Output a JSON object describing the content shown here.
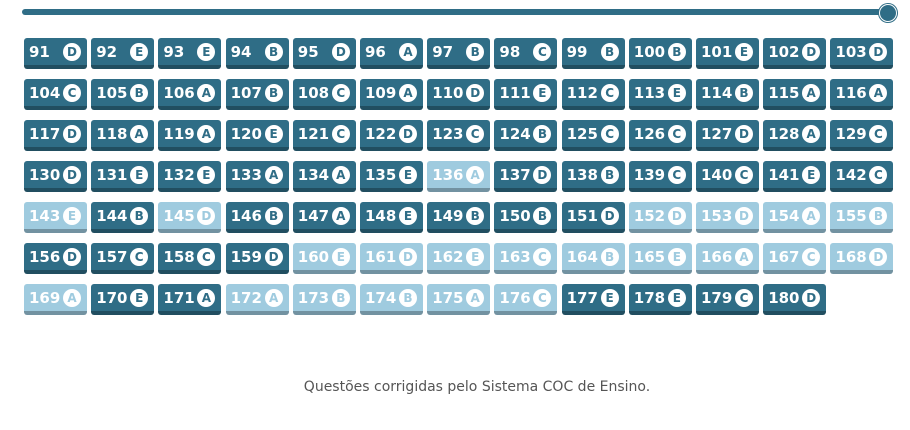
{
  "progress": {
    "value": 1
  },
  "colors": {
    "dark": "#2f6d86",
    "light": "#9fcbdf"
  },
  "questions": [
    {
      "n": "91",
      "a": "D",
      "s": "dark"
    },
    {
      "n": "92",
      "a": "E",
      "s": "dark"
    },
    {
      "n": "93",
      "a": "E",
      "s": "dark"
    },
    {
      "n": "94",
      "a": "B",
      "s": "dark"
    },
    {
      "n": "95",
      "a": "D",
      "s": "dark"
    },
    {
      "n": "96",
      "a": "A",
      "s": "dark"
    },
    {
      "n": "97",
      "a": "B",
      "s": "dark"
    },
    {
      "n": "98",
      "a": "C",
      "s": "dark"
    },
    {
      "n": "99",
      "a": "B",
      "s": "dark"
    },
    {
      "n": "100",
      "a": "B",
      "s": "dark"
    },
    {
      "n": "101",
      "a": "E",
      "s": "dark"
    },
    {
      "n": "102",
      "a": "D",
      "s": "dark"
    },
    {
      "n": "103",
      "a": "D",
      "s": "dark"
    },
    {
      "n": "104",
      "a": "C",
      "s": "dark"
    },
    {
      "n": "105",
      "a": "B",
      "s": "dark"
    },
    {
      "n": "106",
      "a": "A",
      "s": "dark"
    },
    {
      "n": "107",
      "a": "B",
      "s": "dark"
    },
    {
      "n": "108",
      "a": "C",
      "s": "dark"
    },
    {
      "n": "109",
      "a": "A",
      "s": "dark"
    },
    {
      "n": "110",
      "a": "D",
      "s": "dark"
    },
    {
      "n": "111",
      "a": "E",
      "s": "dark"
    },
    {
      "n": "112",
      "a": "C",
      "s": "dark"
    },
    {
      "n": "113",
      "a": "E",
      "s": "dark"
    },
    {
      "n": "114",
      "a": "B",
      "s": "dark"
    },
    {
      "n": "115",
      "a": "A",
      "s": "dark"
    },
    {
      "n": "116",
      "a": "A",
      "s": "dark"
    },
    {
      "n": "117",
      "a": "D",
      "s": "dark"
    },
    {
      "n": "118",
      "a": "A",
      "s": "dark"
    },
    {
      "n": "119",
      "a": "A",
      "s": "dark"
    },
    {
      "n": "120",
      "a": "E",
      "s": "dark"
    },
    {
      "n": "121",
      "a": "C",
      "s": "dark"
    },
    {
      "n": "122",
      "a": "D",
      "s": "dark"
    },
    {
      "n": "123",
      "a": "C",
      "s": "dark"
    },
    {
      "n": "124",
      "a": "B",
      "s": "dark"
    },
    {
      "n": "125",
      "a": "C",
      "s": "dark"
    },
    {
      "n": "126",
      "a": "C",
      "s": "dark"
    },
    {
      "n": "127",
      "a": "D",
      "s": "dark"
    },
    {
      "n": "128",
      "a": "A",
      "s": "dark"
    },
    {
      "n": "129",
      "a": "C",
      "s": "dark"
    },
    {
      "n": "130",
      "a": "D",
      "s": "dark"
    },
    {
      "n": "131",
      "a": "E",
      "s": "dark"
    },
    {
      "n": "132",
      "a": "E",
      "s": "dark"
    },
    {
      "n": "133",
      "a": "A",
      "s": "dark"
    },
    {
      "n": "134",
      "a": "A",
      "s": "dark"
    },
    {
      "n": "135",
      "a": "E",
      "s": "dark"
    },
    {
      "n": "136",
      "a": "A",
      "s": "light"
    },
    {
      "n": "137",
      "a": "D",
      "s": "dark"
    },
    {
      "n": "138",
      "a": "B",
      "s": "dark"
    },
    {
      "n": "139",
      "a": "C",
      "s": "dark"
    },
    {
      "n": "140",
      "a": "C",
      "s": "dark"
    },
    {
      "n": "141",
      "a": "E",
      "s": "dark"
    },
    {
      "n": "142",
      "a": "C",
      "s": "dark"
    },
    {
      "n": "143",
      "a": "E",
      "s": "light"
    },
    {
      "n": "144",
      "a": "B",
      "s": "dark"
    },
    {
      "n": "145",
      "a": "D",
      "s": "light"
    },
    {
      "n": "146",
      "a": "B",
      "s": "dark"
    },
    {
      "n": "147",
      "a": "A",
      "s": "dark"
    },
    {
      "n": "148",
      "a": "E",
      "s": "dark"
    },
    {
      "n": "149",
      "a": "B",
      "s": "dark"
    },
    {
      "n": "150",
      "a": "B",
      "s": "dark"
    },
    {
      "n": "151",
      "a": "D",
      "s": "dark"
    },
    {
      "n": "152",
      "a": "D",
      "s": "light"
    },
    {
      "n": "153",
      "a": "D",
      "s": "light"
    },
    {
      "n": "154",
      "a": "A",
      "s": "light"
    },
    {
      "n": "155",
      "a": "B",
      "s": "light"
    },
    {
      "n": "156",
      "a": "D",
      "s": "dark"
    },
    {
      "n": "157",
      "a": "C",
      "s": "dark"
    },
    {
      "n": "158",
      "a": "C",
      "s": "dark"
    },
    {
      "n": "159",
      "a": "D",
      "s": "dark"
    },
    {
      "n": "160",
      "a": "E",
      "s": "light"
    },
    {
      "n": "161",
      "a": "D",
      "s": "light"
    },
    {
      "n": "162",
      "a": "E",
      "s": "light"
    },
    {
      "n": "163",
      "a": "C",
      "s": "light"
    },
    {
      "n": "164",
      "a": "B",
      "s": "light"
    },
    {
      "n": "165",
      "a": "E",
      "s": "light"
    },
    {
      "n": "166",
      "a": "A",
      "s": "light"
    },
    {
      "n": "167",
      "a": "C",
      "s": "light"
    },
    {
      "n": "168",
      "a": "D",
      "s": "light"
    },
    {
      "n": "169",
      "a": "A",
      "s": "light"
    },
    {
      "n": "170",
      "a": "E",
      "s": "dark"
    },
    {
      "n": "171",
      "a": "A",
      "s": "dark"
    },
    {
      "n": "172",
      "a": "A",
      "s": "light"
    },
    {
      "n": "173",
      "a": "B",
      "s": "light"
    },
    {
      "n": "174",
      "a": "B",
      "s": "light"
    },
    {
      "n": "175",
      "a": "A",
      "s": "light"
    },
    {
      "n": "176",
      "a": "C",
      "s": "light"
    },
    {
      "n": "177",
      "a": "E",
      "s": "dark"
    },
    {
      "n": "178",
      "a": "E",
      "s": "dark"
    },
    {
      "n": "179",
      "a": "C",
      "s": "dark"
    },
    {
      "n": "180",
      "a": "D",
      "s": "dark"
    }
  ],
  "footer": "Questões corrigidas pelo Sistema COC de Ensino."
}
